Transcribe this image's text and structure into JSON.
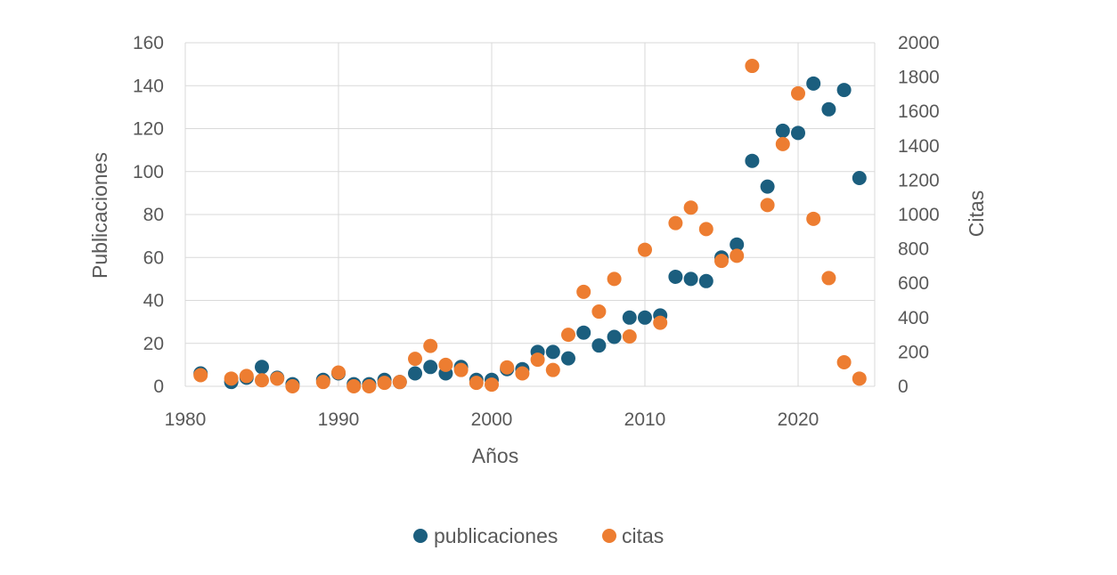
{
  "chart_data": {
    "type": "scatter",
    "title": "",
    "xlabel": "Años",
    "ylabel": "Publicaciones",
    "y2label": "Citas",
    "xlim": [
      1980,
      2025
    ],
    "xticks": [
      1980,
      1990,
      2000,
      2010,
      2020
    ],
    "ylim": [
      0,
      160
    ],
    "yticks": [
      0,
      20,
      40,
      60,
      80,
      100,
      120,
      140,
      160
    ],
    "y2lim": [
      0,
      2000
    ],
    "y2ticks": [
      0,
      200,
      400,
      600,
      800,
      1000,
      1200,
      1400,
      1600,
      1800,
      2000
    ],
    "grid": true,
    "legend_position": "bottom",
    "series": [
      {
        "name": "publicaciones",
        "axis": "left",
        "color": "#1b5e7e",
        "points": [
          [
            1981,
            6
          ],
          [
            1983,
            2
          ],
          [
            1984,
            4
          ],
          [
            1985,
            9
          ],
          [
            1986,
            4
          ],
          [
            1987,
            1
          ],
          [
            1989,
            3
          ],
          [
            1990,
            6
          ],
          [
            1991,
            1
          ],
          [
            1992,
            1
          ],
          [
            1993,
            3
          ],
          [
            1994,
            2
          ],
          [
            1995,
            6
          ],
          [
            1996,
            9
          ],
          [
            1997,
            6
          ],
          [
            1998,
            9
          ],
          [
            1999,
            3
          ],
          [
            2000,
            3
          ],
          [
            2001,
            8
          ],
          [
            2002,
            8
          ],
          [
            2003,
            16
          ],
          [
            2004,
            16
          ],
          [
            2005,
            13
          ],
          [
            2006,
            25
          ],
          [
            2007,
            19
          ],
          [
            2008,
            23
          ],
          [
            2009,
            32
          ],
          [
            2010,
            32
          ],
          [
            2011,
            33
          ],
          [
            2012,
            51
          ],
          [
            2013,
            50
          ],
          [
            2014,
            49
          ],
          [
            2015,
            60
          ],
          [
            2016,
            66
          ],
          [
            2017,
            105
          ],
          [
            2018,
            93
          ],
          [
            2019,
            119
          ],
          [
            2020,
            118
          ],
          [
            2021,
            141
          ],
          [
            2022,
            129
          ],
          [
            2023,
            138
          ],
          [
            2024,
            97
          ]
        ]
      },
      {
        "name": "citas",
        "axis": "right",
        "color": "#ed7d31",
        "points": [
          [
            1981,
            65
          ],
          [
            1983,
            45
          ],
          [
            1984,
            60
          ],
          [
            1985,
            35
          ],
          [
            1986,
            45
          ],
          [
            1987,
            0
          ],
          [
            1989,
            25
          ],
          [
            1990,
            80
          ],
          [
            1991,
            0
          ],
          [
            1992,
            0
          ],
          [
            1993,
            20
          ],
          [
            1994,
            25
          ],
          [
            1995,
            160
          ],
          [
            1996,
            235
          ],
          [
            1997,
            125
          ],
          [
            1998,
            95
          ],
          [
            1999,
            20
          ],
          [
            2000,
            10
          ],
          [
            2001,
            110
          ],
          [
            2002,
            75
          ],
          [
            2003,
            155
          ],
          [
            2004,
            95
          ],
          [
            2005,
            300
          ],
          [
            2006,
            550
          ],
          [
            2007,
            435
          ],
          [
            2008,
            625
          ],
          [
            2009,
            290
          ],
          [
            2010,
            795
          ],
          [
            2011,
            370
          ],
          [
            2012,
            950
          ],
          [
            2013,
            1040
          ],
          [
            2014,
            915
          ],
          [
            2015,
            730
          ],
          [
            2016,
            760
          ],
          [
            2017,
            1865
          ],
          [
            2018,
            1055
          ],
          [
            2019,
            1410
          ],
          [
            2020,
            1705
          ],
          [
            2021,
            975
          ],
          [
            2022,
            630
          ],
          [
            2023,
            140
          ],
          [
            2024,
            45
          ]
        ]
      }
    ]
  }
}
